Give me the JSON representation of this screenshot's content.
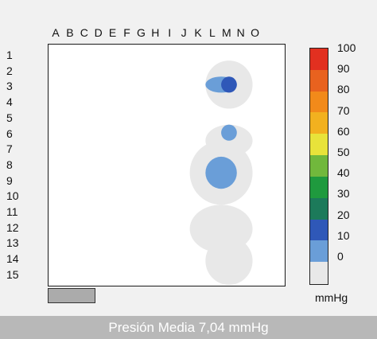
{
  "chart_data": {
    "type": "heatmap",
    "columns": [
      "A",
      "B",
      "C",
      "D",
      "E",
      "F",
      "G",
      "H",
      "I",
      "J",
      "K",
      "L",
      "M",
      "N",
      "O"
    ],
    "rows": [
      "1",
      "2",
      "3",
      "4",
      "5",
      "6",
      "7",
      "8",
      "9",
      "10",
      "11",
      "12",
      "13",
      "14",
      "15"
    ],
    "colorbar": {
      "min": 0,
      "max": 100,
      "ticks": [
        "100",
        "90",
        "80",
        "70",
        "60",
        "50",
        "40",
        "30",
        "20",
        "10",
        "0"
      ],
      "unit": "mmHg",
      "bands": [
        {
          "from": 0,
          "to": 10,
          "color": "#e8e8e8"
        },
        {
          "from": 10,
          "to": 20,
          "color": "#6a9ed8"
        },
        {
          "from": 20,
          "to": 30,
          "color": "#2f58b8"
        },
        {
          "from": 30,
          "to": 40,
          "color": "#1c7a5a"
        },
        {
          "from": 40,
          "to": 50,
          "color": "#1f9a3e"
        },
        {
          "from": 50,
          "to": 60,
          "color": "#71b83c"
        },
        {
          "from": 60,
          "to": 70,
          "color": "#e8e33a"
        },
        {
          "from": 70,
          "to": 80,
          "color": "#f2b11f"
        },
        {
          "from": 80,
          "to": 90,
          "color": "#f28a1a"
        },
        {
          "from": 90,
          "to": 100,
          "color": "#e8621f"
        },
        {
          "from": 100,
          "to": 110,
          "color": "#e23020"
        }
      ]
    },
    "zones": [
      {
        "cols": [
          "K",
          "L",
          "M"
        ],
        "rows": [
          "2",
          "3",
          "4"
        ],
        "level": 5
      },
      {
        "cols": [
          "K",
          "L",
          "M"
        ],
        "rows": [
          "6",
          "7"
        ],
        "level": 5
      },
      {
        "cols": [
          "J",
          "K",
          "L",
          "M"
        ],
        "rows": [
          "7",
          "8",
          "9",
          "10"
        ],
        "level": 5
      },
      {
        "cols": [
          "J",
          "K",
          "L",
          "M"
        ],
        "rows": [
          "11",
          "12",
          "13"
        ],
        "level": 5
      },
      {
        "cols": [
          "K",
          "L",
          "M"
        ],
        "rows": [
          "13",
          "14",
          "15"
        ],
        "level": 5
      },
      {
        "cols": [
          "K",
          "L"
        ],
        "rows": [
          "3"
        ],
        "level": 15
      },
      {
        "cols": [
          "L"
        ],
        "rows": [
          "3"
        ],
        "level": 25
      },
      {
        "cols": [
          "L"
        ],
        "rows": [
          "6"
        ],
        "level": 15
      },
      {
        "cols": [
          "K",
          "L"
        ],
        "rows": [
          "8",
          "9"
        ],
        "level": 15
      }
    ],
    "footer_text": "Presión Media   7,04 mmHg"
  }
}
